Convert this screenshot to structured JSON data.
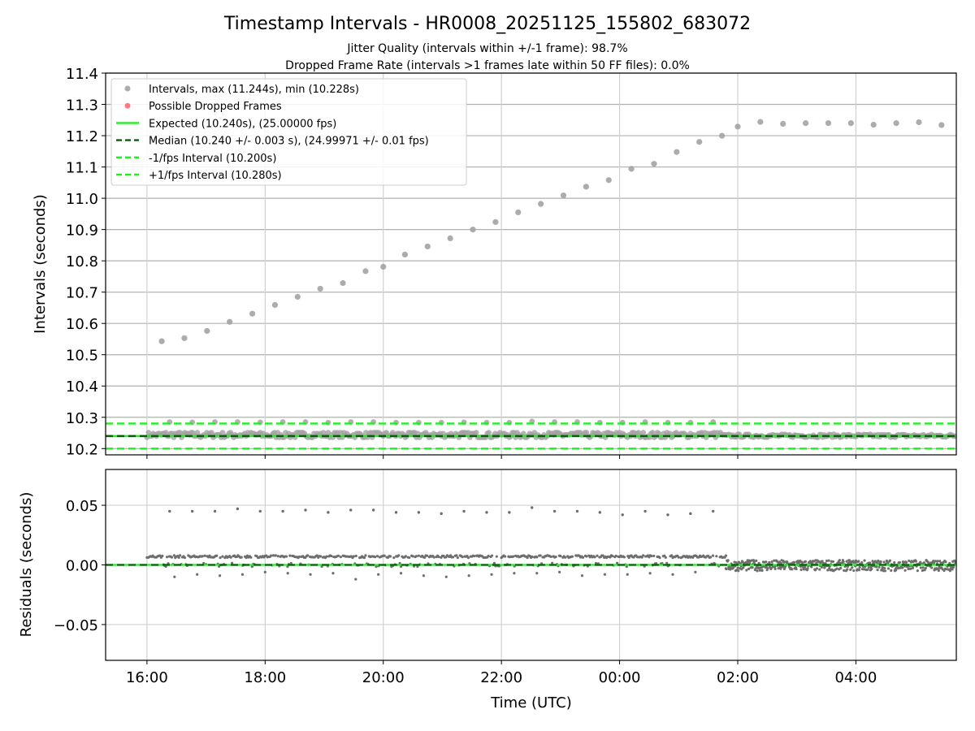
{
  "chart_data": [
    {
      "type": "scatter",
      "title": "Timestamp Intervals - HR0008_20251125_155802_683072",
      "subtitle_lines": [
        "Jitter Quality (intervals within +/-1 frame): 98.7%",
        "Dropped Frame Rate (intervals >1 frames late within 50 FF files): 0.0%"
      ],
      "xlabel": "",
      "ylabel": "Intervals (seconds)",
      "xlim": [
        "2025-11-25 15:18",
        "2025-11-26 05:42"
      ],
      "ylim": [
        10.18,
        11.4
      ],
      "grid": true,
      "yticks": [
        10.2,
        10.3,
        10.4,
        10.5,
        10.6,
        10.7,
        10.8,
        10.9,
        11.0,
        11.1,
        11.2,
        11.3,
        11.4
      ],
      "ytick_labels": [
        "10.2",
        "10.3",
        "10.4",
        "10.5",
        "10.6",
        "10.7",
        "10.8",
        "10.9",
        "11.0",
        "11.1",
        "11.2",
        "11.3",
        "11.4"
      ],
      "xticks": [
        "2025-11-25 16:00",
        "2025-11-25 18:00",
        "2025-11-25 20:00",
        "2025-11-25 22:00",
        "2025-11-26 00:00",
        "2025-11-26 02:00",
        "2025-11-26 04:00"
      ],
      "legend_placement": "upper-left",
      "legend": [
        {
          "label": "Intervals, max (11.244s), min (10.228s)",
          "kind": "marker",
          "color": "#a3a3a3"
        },
        {
          "label": "Possible Dropped Frames",
          "kind": "marker",
          "color": "#ff6b6b"
        },
        {
          "label": "Expected (10.240s), (25.00000 fps)",
          "kind": "solid",
          "color": "#22ee22"
        },
        {
          "label": "Median (10.240 +/- 0.003 s), (24.99971 +/- 0.01 fps)",
          "kind": "dashed",
          "color": "#0a5e0a"
        },
        {
          "label": "-1/fps Interval (10.200s)",
          "kind": "dashed",
          "color": "#22ee22"
        },
        {
          "label": "+1/fps Interval (10.280s)",
          "kind": "dashed",
          "color": "#22ee22"
        }
      ],
      "reference_lines": [
        {
          "name": "Expected",
          "y": 10.24,
          "style": "solid",
          "color": "#22ee22"
        },
        {
          "name": "Median",
          "y": 10.24,
          "style": "dashed",
          "color": "#0a5e0a"
        },
        {
          "name": "-1/fps Interval",
          "y": 10.2,
          "style": "dashed",
          "color": "#22ee22"
        },
        {
          "name": "+1/fps Interval",
          "y": 10.28,
          "style": "dashed",
          "color": "#22ee22"
        }
      ],
      "series": [
        {
          "name": "Intervals",
          "color": "#a3a3a3",
          "outlier_points": [
            {
              "x": "2025-11-25 16:15",
              "y": 10.543
            },
            {
              "x": "2025-11-25 16:38",
              "y": 10.553
            },
            {
              "x": "2025-11-25 17:01",
              "y": 10.576
            },
            {
              "x": "2025-11-25 17:24",
              "y": 10.605
            },
            {
              "x": "2025-11-25 17:47",
              "y": 10.631
            },
            {
              "x": "2025-11-25 18:10",
              "y": 10.659
            },
            {
              "x": "2025-11-25 18:33",
              "y": 10.685
            },
            {
              "x": "2025-11-25 18:56",
              "y": 10.711
            },
            {
              "x": "2025-11-25 19:19",
              "y": 10.729
            },
            {
              "x": "2025-11-25 19:42",
              "y": 10.767
            },
            {
              "x": "2025-11-25 20:00",
              "y": 10.781
            },
            {
              "x": "2025-11-25 20:22",
              "y": 10.82
            },
            {
              "x": "2025-11-25 20:45",
              "y": 10.846
            },
            {
              "x": "2025-11-25 21:08",
              "y": 10.872
            },
            {
              "x": "2025-11-25 21:31",
              "y": 10.9
            },
            {
              "x": "2025-11-25 21:54",
              "y": 10.924
            },
            {
              "x": "2025-11-25 22:17",
              "y": 10.955
            },
            {
              "x": "2025-11-25 22:40",
              "y": 10.982
            },
            {
              "x": "2025-11-25 23:03",
              "y": 11.009
            },
            {
              "x": "2025-11-25 23:26",
              "y": 11.037
            },
            {
              "x": "2025-11-25 23:49",
              "y": 11.058
            },
            {
              "x": "2025-11-26 00:12",
              "y": 11.094
            },
            {
              "x": "2025-11-26 00:35",
              "y": 11.11
            },
            {
              "x": "2025-11-26 00:58",
              "y": 11.148
            },
            {
              "x": "2025-11-26 01:21",
              "y": 11.18
            },
            {
              "x": "2025-11-26 01:44",
              "y": 11.2
            },
            {
              "x": "2025-11-26 02:00",
              "y": 11.229
            },
            {
              "x": "2025-11-26 02:23",
              "y": 11.244
            },
            {
              "x": "2025-11-26 02:46",
              "y": 11.238
            },
            {
              "x": "2025-11-26 03:09",
              "y": 11.24
            },
            {
              "x": "2025-11-26 03:32",
              "y": 11.24
            },
            {
              "x": "2025-11-26 03:55",
              "y": 11.24
            },
            {
              "x": "2025-11-26 04:18",
              "y": 11.235
            },
            {
              "x": "2025-11-26 04:41",
              "y": 11.24
            },
            {
              "x": "2025-11-26 05:04",
              "y": 11.243
            },
            {
              "x": "2025-11-26 05:27",
              "y": 11.234
            }
          ],
          "late_points": [
            {
              "x": "2025-11-25 16:23",
              "y": 10.285
            },
            {
              "x": "2025-11-25 16:46",
              "y": 10.284
            },
            {
              "x": "2025-11-25 17:09",
              "y": 10.285
            },
            {
              "x": "2025-11-25 17:32",
              "y": 10.285
            },
            {
              "x": "2025-11-25 17:55",
              "y": 10.284
            },
            {
              "x": "2025-11-25 18:18",
              "y": 10.285
            },
            {
              "x": "2025-11-25 18:41",
              "y": 10.285
            },
            {
              "x": "2025-11-25 19:04",
              "y": 10.283
            },
            {
              "x": "2025-11-25 19:27",
              "y": 10.285
            },
            {
              "x": "2025-11-25 19:50",
              "y": 10.285
            },
            {
              "x": "2025-11-25 20:13",
              "y": 10.283
            },
            {
              "x": "2025-11-25 20:36",
              "y": 10.283
            },
            {
              "x": "2025-11-25 20:59",
              "y": 10.283
            },
            {
              "x": "2025-11-25 21:22",
              "y": 10.284
            },
            {
              "x": "2025-11-25 21:45",
              "y": 10.283
            },
            {
              "x": "2025-11-25 22:08",
              "y": 10.283
            },
            {
              "x": "2025-11-25 22:31",
              "y": 10.287
            },
            {
              "x": "2025-11-25 22:54",
              "y": 10.285
            },
            {
              "x": "2025-11-25 23:17",
              "y": 10.285
            },
            {
              "x": "2025-11-25 23:40",
              "y": 10.283
            },
            {
              "x": "2025-11-26 00:03",
              "y": 10.283
            },
            {
              "x": "2025-11-26 00:26",
              "y": 10.285
            },
            {
              "x": "2025-11-26 00:49",
              "y": 10.283
            },
            {
              "x": "2025-11-26 01:12",
              "y": 10.283
            },
            {
              "x": "2025-11-26 01:35",
              "y": 10.285
            }
          ],
          "main_band": {
            "x_start": "2025-11-25 16:00",
            "x_end": "2025-11-26 05:42",
            "y_values": [
              10.236,
              10.24,
              10.244,
              10.248,
              10.251
            ]
          }
        },
        {
          "name": "Possible Dropped Frames",
          "color": "#ff6b6b",
          "points": []
        }
      ]
    },
    {
      "type": "scatter",
      "title": "",
      "xlabel": "Time (UTC)",
      "ylabel": "Residuals (seconds)",
      "xlim": [
        "2025-11-25 15:18",
        "2025-11-26 05:42"
      ],
      "ylim": [
        -0.08,
        0.08
      ],
      "grid": true,
      "yticks": [
        0.05,
        0.0,
        -0.05
      ],
      "ytick_labels": [
        "0.05",
        "0.00",
        "−0.05"
      ],
      "xticks": [
        "2025-11-25 16:00",
        "2025-11-25 18:00",
        "2025-11-25 20:00",
        "2025-11-25 22:00",
        "2025-11-26 00:00",
        "2025-11-26 02:00",
        "2025-11-26 04:00"
      ],
      "xtick_labels": [
        "16:00",
        "18:00",
        "20:00",
        "22:00",
        "00:00",
        "02:00",
        "04:00"
      ],
      "reference_lines": [
        {
          "name": "zero-green",
          "y": 0.0,
          "style": "solid",
          "color": "#22ee22"
        },
        {
          "name": "zero-dark",
          "y": 0.0,
          "style": "dashed",
          "color": "#0a5e0a"
        }
      ],
      "series": [
        {
          "name": "Residuals",
          "color": "#6e6e6e",
          "high_points": [
            0.045,
            0.045,
            0.045,
            0.047,
            0.045,
            0.045,
            0.046,
            0.044,
            0.046,
            0.046,
            0.044,
            0.044,
            0.043,
            0.045,
            0.044,
            0.044,
            0.048,
            0.045,
            0.045,
            0.044,
            0.042,
            0.045,
            0.042,
            0.043,
            0.045
          ],
          "low_points": [
            -0.01,
            -0.008,
            -0.009,
            -0.008,
            -0.006,
            -0.007,
            -0.008,
            -0.007,
            -0.012,
            -0.008,
            -0.007,
            -0.009,
            -0.01,
            -0.009,
            -0.008,
            -0.007,
            -0.007,
            -0.006,
            -0.009,
            -0.008,
            -0.008,
            -0.007,
            -0.008,
            -0.006
          ],
          "cluster_level_before_02": 0.007,
          "scatter_band_after_02": [
            -0.005,
            0.004
          ]
        }
      ]
    }
  ]
}
